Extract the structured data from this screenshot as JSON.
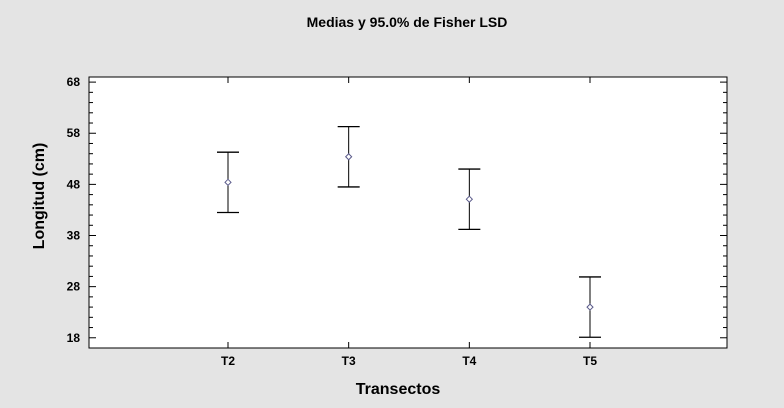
{
  "chart_data": {
    "type": "errorbar",
    "title": "Medias y 95.0% de Fisher LSD",
    "xlabel": "Transectos",
    "ylabel": "Longitud (cm)",
    "categories": [
      "T2",
      "T3",
      "T4",
      "T5"
    ],
    "means": [
      48.4,
      53.4,
      45.1,
      24.0
    ],
    "lower": [
      42.5,
      47.5,
      39.2,
      18.1
    ],
    "upper": [
      54.3,
      59.3,
      51.0,
      29.9
    ],
    "ylim": [
      16,
      69
    ],
    "yticks": [
      18,
      28,
      38,
      48,
      58,
      68
    ],
    "grid": false,
    "colors": {
      "background": "#e4e4e4",
      "plot_area": "#ffffff",
      "ink": "#000000",
      "marker": "#5a5a8a"
    }
  }
}
